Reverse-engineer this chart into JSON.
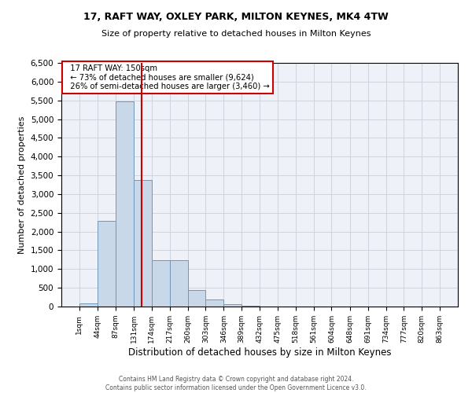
{
  "title_line1": "17, RAFT WAY, OXLEY PARK, MILTON KEYNES, MK4 4TW",
  "title_line2": "Size of property relative to detached houses in Milton Keynes",
  "xlabel": "Distribution of detached houses by size in Milton Keynes",
  "ylabel": "Number of detached properties",
  "annotation_line1": "17 RAFT WAY: 150sqm",
  "annotation_line2": "← 73% of detached houses are smaller (9,624)",
  "annotation_line3": "26% of semi-detached houses are larger (3,460) →",
  "footer_line1": "Contains HM Land Registry data © Crown copyright and database right 2024.",
  "footer_line2": "Contains public sector information licensed under the Open Government Licence v3.0.",
  "bar_color": "#c8d8e8",
  "bar_edge_color": "#7098b8",
  "red_line_color": "#cc0000",
  "annotation_box_edge_color": "#cc0000",
  "grid_color": "#c8d0dc",
  "background_color": "#eef2f8",
  "bin_edges": [
    1,
    44,
    87,
    131,
    174,
    217,
    260,
    303,
    346,
    389,
    432,
    475,
    518,
    561,
    604,
    648,
    691,
    734,
    777,
    820,
    863
  ],
  "bin_counts": [
    90,
    2280,
    5480,
    3380,
    1230,
    1230,
    430,
    185,
    70,
    25,
    3,
    3,
    0,
    0,
    0,
    0,
    0,
    0,
    0,
    0
  ],
  "red_line_x": 150,
  "ylim": [
    0,
    6500
  ],
  "yticks": [
    0,
    500,
    1000,
    1500,
    2000,
    2500,
    3000,
    3500,
    4000,
    4500,
    5000,
    5500,
    6000,
    6500
  ]
}
